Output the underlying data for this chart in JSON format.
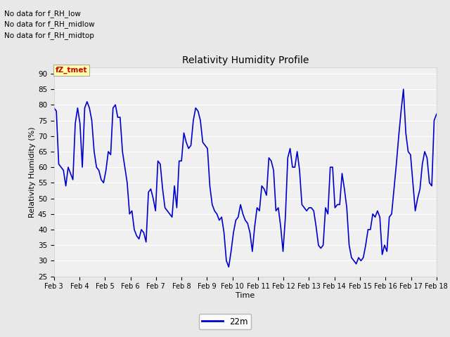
{
  "title": "Relativity Humidity Profile",
  "xlabel": "Time",
  "ylabel": "Relativity Humidity (%)",
  "ylim": [
    25,
    92
  ],
  "yticks": [
    25,
    30,
    35,
    40,
    45,
    50,
    55,
    60,
    65,
    70,
    75,
    80,
    85,
    90
  ],
  "xtick_labels": [
    "Feb 3",
    "Feb 4",
    "Feb 5",
    "Feb 6",
    "Feb 7",
    "Feb 8",
    "Feb 9",
    "Feb 10",
    "Feb 11",
    "Feb 12",
    "Feb 13",
    "Feb 14",
    "Feb 15",
    "Feb 16",
    "Feb 17",
    "Feb 18"
  ],
  "line_color": "#0000cc",
  "line_width": 1.2,
  "legend_label": "22m",
  "no_data_texts": [
    "No data for f_RH_low",
    "No data for f_RH_midlow",
    "No data for f_RH_midtop"
  ],
  "tooltip_text": "fZ_tmet",
  "fig_bg_color": "#e8e8e8",
  "plot_bg_color": "#f0f0f0",
  "grid_color": "#ffffff",
  "y_values": [
    79,
    78,
    61,
    60,
    59,
    54,
    60,
    58,
    56,
    74,
    79,
    74,
    60,
    79,
    81,
    79,
    75,
    65,
    60,
    59,
    56,
    55,
    59,
    65,
    64,
    79,
    80,
    76,
    76,
    65,
    60,
    55,
    45,
    46,
    40,
    38,
    37,
    40,
    39,
    36,
    52,
    53,
    50,
    46,
    62,
    61,
    53,
    47,
    46,
    45,
    44,
    54,
    47,
    62,
    62,
    71,
    68,
    66,
    67,
    75,
    79,
    78,
    75,
    68,
    67,
    66,
    54,
    48,
    46,
    45,
    43,
    44,
    39,
    30,
    28,
    33,
    39,
    43,
    44,
    48,
    45,
    43,
    42,
    39,
    33,
    41,
    47,
    46,
    54,
    53,
    51,
    63,
    62,
    59,
    46,
    47,
    41,
    33,
    44,
    63,
    66,
    60,
    60,
    65,
    59,
    48,
    47,
    46,
    47,
    47,
    46,
    41,
    35,
    34,
    35,
    47,
    45,
    60,
    60,
    47,
    48,
    48,
    58,
    53,
    47,
    35,
    31,
    30,
    29,
    31,
    30,
    31,
    35,
    40,
    40,
    45,
    44,
    46,
    44,
    32,
    35,
    33,
    44,
    45,
    53,
    61,
    70,
    78,
    85,
    71,
    65,
    64,
    55,
    46,
    50,
    53,
    61,
    65,
    63,
    55,
    54,
    75,
    77
  ]
}
